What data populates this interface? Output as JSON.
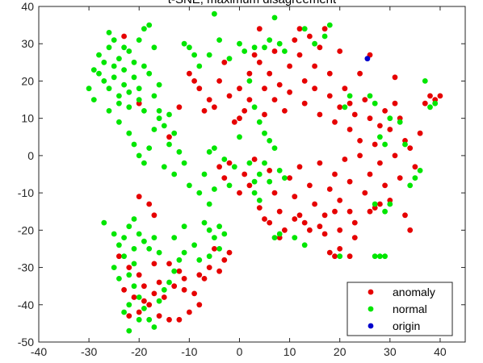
{
  "chart_data": {
    "type": "scatter",
    "title": "t-SNE, maximum disagreement",
    "xlim": [
      -40,
      45
    ],
    "ylim": [
      -50,
      40
    ],
    "x_ticks": [
      -40,
      -30,
      -20,
      -10,
      0,
      10,
      20,
      30,
      40
    ],
    "y_ticks": [
      -50,
      -40,
      -30,
      -20,
      -10,
      0,
      10,
      20,
      30,
      40
    ],
    "grid": false,
    "legend_position": "bottom-right",
    "series": [
      {
        "name": "anomaly",
        "color": "#e60000",
        "points": [
          [
            -23,
            32
          ],
          [
            -20,
            14
          ],
          [
            -14,
            5
          ],
          [
            -12,
            13
          ],
          [
            -10,
            22
          ],
          [
            -9,
            20
          ],
          [
            -8,
            18
          ],
          [
            -7,
            12
          ],
          [
            -6,
            15
          ],
          [
            -5,
            13
          ],
          [
            -4,
            20
          ],
          [
            -3,
            25
          ],
          [
            -2,
            16
          ],
          [
            -1,
            9
          ],
          [
            0,
            10
          ],
          [
            0,
            18
          ],
          [
            1,
            12
          ],
          [
            2,
            22
          ],
          [
            2,
            15
          ],
          [
            3,
            27
          ],
          [
            4,
            34
          ],
          [
            4,
            25
          ],
          [
            5,
            18
          ],
          [
            5,
            11
          ],
          [
            6,
            22
          ],
          [
            7,
            15
          ],
          [
            7,
            28
          ],
          [
            8,
            19
          ],
          [
            9,
            12
          ],
          [
            10,
            24
          ],
          [
            10,
            17
          ],
          [
            11,
            31
          ],
          [
            12,
            34
          ],
          [
            12,
            27
          ],
          [
            13,
            20
          ],
          [
            13,
            14
          ],
          [
            14,
            32
          ],
          [
            15,
            24
          ],
          [
            15,
            18
          ],
          [
            16,
            29
          ],
          [
            16,
            11
          ],
          [
            17,
            34
          ],
          [
            18,
            22
          ],
          [
            18,
            16
          ],
          [
            19,
            9
          ],
          [
            20,
            28
          ],
          [
            20,
            13
          ],
          [
            21,
            18
          ],
          [
            22,
            7
          ],
          [
            22,
            14
          ],
          [
            23,
            11
          ],
          [
            24,
            22
          ],
          [
            24,
            4
          ],
          [
            25,
            15
          ],
          [
            26,
            27
          ],
          [
            26,
            10
          ],
          [
            27,
            3
          ],
          [
            28,
            8
          ],
          [
            29,
            12
          ],
          [
            30,
            7
          ],
          [
            31,
            14
          ],
          [
            31,
            21
          ],
          [
            32,
            10
          ],
          [
            33,
            4
          ],
          [
            34,
            2
          ],
          [
            35,
            -3
          ],
          [
            36,
            6
          ],
          [
            37,
            14
          ],
          [
            38,
            16
          ],
          [
            39,
            15
          ],
          [
            40,
            16
          ],
          [
            -4,
            -3
          ],
          [
            -3,
            -6
          ],
          [
            -2,
            -2
          ],
          [
            0,
            -10
          ],
          [
            1,
            -5
          ],
          [
            2,
            -8
          ],
          [
            3,
            -1
          ],
          [
            4,
            -14
          ],
          [
            5,
            -17
          ],
          [
            6,
            -4
          ],
          [
            7,
            -10
          ],
          [
            8,
            -15
          ],
          [
            9,
            -20
          ],
          [
            10,
            -6
          ],
          [
            11,
            -11
          ],
          [
            12,
            -3
          ],
          [
            13,
            -18
          ],
          [
            14,
            -8
          ],
          [
            15,
            -13
          ],
          [
            16,
            -2
          ],
          [
            17,
            -16
          ],
          [
            18,
            -9
          ],
          [
            19,
            -5
          ],
          [
            20,
            -12
          ],
          [
            20,
            -20
          ],
          [
            21,
            -1
          ],
          [
            22,
            -15
          ],
          [
            22,
            -7
          ],
          [
            23,
            -22
          ],
          [
            24,
            0
          ],
          [
            25,
            -10
          ],
          [
            26,
            -5
          ],
          [
            27,
            -14
          ],
          [
            28,
            -2
          ],
          [
            29,
            -8
          ],
          [
            30,
            -12
          ],
          [
            31,
            0
          ],
          [
            32,
            -6
          ],
          [
            33,
            -16
          ],
          [
            34,
            -20
          ],
          [
            12,
            -16
          ],
          [
            17,
            -21
          ],
          [
            20,
            -25
          ],
          [
            18,
            -26
          ],
          [
            19,
            -27
          ],
          [
            22,
            -27
          ],
          [
            6,
            -18
          ],
          [
            8,
            -22
          ],
          [
            11,
            -17
          ],
          [
            14,
            -20
          ],
          [
            16,
            -19
          ],
          [
            19,
            -15
          ],
          [
            23,
            -18
          ],
          [
            26,
            -15
          ],
          [
            28,
            -13
          ],
          [
            -20,
            -11
          ],
          [
            -18,
            -13
          ],
          [
            -17,
            -16
          ],
          [
            -24,
            -27
          ],
          [
            -22,
            -30
          ],
          [
            -20,
            -32
          ],
          [
            -19,
            -35
          ],
          [
            -17,
            -29
          ],
          [
            -16,
            -34
          ],
          [
            -14,
            -29
          ],
          [
            -12,
            -31
          ],
          [
            -11,
            -33
          ],
          [
            -13,
            -35
          ],
          [
            -15,
            -38
          ],
          [
            -18,
            -40
          ],
          [
            -20,
            -42
          ],
          [
            -22,
            -43
          ],
          [
            -16,
            -43
          ],
          [
            -14,
            -44
          ],
          [
            -12,
            -44
          ],
          [
            -10,
            -42
          ],
          [
            -8,
            -40
          ],
          [
            -9,
            -37
          ],
          [
            -11,
            -36
          ],
          [
            -7,
            -33
          ],
          [
            -6,
            -30
          ],
          [
            -4,
            -31
          ],
          [
            -3,
            -28
          ],
          [
            -2,
            -26
          ],
          [
            -5,
            -25
          ],
          [
            -8,
            -32
          ],
          [
            -17,
            -37
          ],
          [
            -19,
            -39
          ],
          [
            -21,
            -38
          ],
          [
            -23,
            -36
          ]
        ]
      },
      {
        "name": "normal",
        "color": "#00e600",
        "points": [
          [
            -30,
            18
          ],
          [
            -29,
            23
          ],
          [
            -28,
            27
          ],
          [
            -27,
            25
          ],
          [
            -27,
            20
          ],
          [
            -26,
            18
          ],
          [
            -26,
            29
          ],
          [
            -25,
            24
          ],
          [
            -25,
            21
          ],
          [
            -24,
            26
          ],
          [
            -24,
            16
          ],
          [
            -24,
            14
          ],
          [
            -23,
            23
          ],
          [
            -23,
            19
          ],
          [
            -22,
            28
          ],
          [
            -22,
            17
          ],
          [
            -22,
            13
          ],
          [
            -21,
            25
          ],
          [
            -21,
            21
          ],
          [
            -20,
            31
          ],
          [
            -20,
            18
          ],
          [
            -19,
            34
          ],
          [
            -19,
            24
          ],
          [
            -19,
            12
          ],
          [
            -18,
            35
          ],
          [
            -18,
            22
          ],
          [
            -17,
            29
          ],
          [
            -17,
            16
          ],
          [
            -16,
            12
          ],
          [
            -16,
            19
          ],
          [
            -26,
            33
          ],
          [
            -28,
            22
          ],
          [
            -29,
            15
          ],
          [
            -25,
            31
          ],
          [
            -23,
            29
          ],
          [
            -20,
            15
          ],
          [
            -26,
            12
          ],
          [
            -24,
            9
          ],
          [
            -22,
            6
          ],
          [
            -21,
            3
          ],
          [
            -20,
            0
          ],
          [
            -19,
            -2
          ],
          [
            -18,
            2
          ],
          [
            -17,
            7
          ],
          [
            -16,
            10
          ],
          [
            -15,
            8
          ],
          [
            -14,
            11
          ],
          [
            -13,
            6
          ],
          [
            -12,
            1
          ],
          [
            -11,
            -2
          ],
          [
            -14,
            3
          ],
          [
            -15,
            -3
          ],
          [
            -13,
            -5
          ],
          [
            -10,
            -8
          ],
          [
            -8,
            -10
          ],
          [
            -7,
            -5
          ],
          [
            -6,
            -13
          ],
          [
            -5,
            -9
          ],
          [
            -5,
            38
          ],
          [
            -11,
            30
          ],
          [
            -10,
            29
          ],
          [
            -9,
            27
          ],
          [
            -8,
            24
          ],
          [
            -6,
            27
          ],
          [
            -4,
            31
          ],
          [
            -2,
            26
          ],
          [
            0,
            30
          ],
          [
            1,
            28
          ],
          [
            3,
            29
          ],
          [
            5,
            29
          ],
          [
            6,
            31
          ],
          [
            7,
            37
          ],
          [
            8,
            30
          ],
          [
            9,
            28
          ],
          [
            2,
            20
          ],
          [
            3,
            13
          ],
          [
            4,
            9
          ],
          [
            5,
            6
          ],
          [
            6,
            4
          ],
          [
            7,
            2
          ],
          [
            5,
            -2
          ],
          [
            4,
            -5
          ],
          [
            6,
            -7
          ],
          [
            3,
            -7
          ],
          [
            8,
            -4
          ],
          [
            9,
            -6
          ],
          [
            -1,
            -3
          ],
          [
            -2,
            -8
          ],
          [
            2,
            -2
          ],
          [
            0,
            5
          ],
          [
            -3,
            -1
          ],
          [
            -6,
            1
          ],
          [
            -5,
            2
          ],
          [
            13,
            34
          ],
          [
            15,
            30
          ],
          [
            17,
            32
          ],
          [
            18,
            35
          ],
          [
            21,
            13
          ],
          [
            22,
            16
          ],
          [
            26,
            16
          ],
          [
            27,
            14
          ],
          [
            28,
            5
          ],
          [
            29,
            3
          ],
          [
            30,
            10
          ],
          [
            32,
            9
          ],
          [
            33,
            3
          ],
          [
            35,
            -6
          ],
          [
            36,
            -4
          ],
          [
            37,
            20
          ],
          [
            38,
            13
          ],
          [
            39,
            14
          ],
          [
            34,
            -8
          ],
          [
            27,
            -13
          ],
          [
            29,
            -15
          ],
          [
            30,
            -13
          ],
          [
            27,
            -27
          ],
          [
            28,
            -27
          ],
          [
            29,
            -27
          ],
          [
            20,
            -27
          ],
          [
            13,
            -24
          ],
          [
            11,
            -22
          ],
          [
            7,
            -22
          ],
          [
            8,
            -21
          ],
          [
            3,
            -10
          ],
          [
            4,
            -12
          ],
          [
            -27,
            -18
          ],
          [
            -25,
            -21
          ],
          [
            -24,
            -24
          ],
          [
            -23,
            -22
          ],
          [
            -22,
            -19
          ],
          [
            -21,
            -17
          ],
          [
            -20,
            -21
          ],
          [
            -19,
            -23
          ],
          [
            -18,
            -25
          ],
          [
            -17,
            -22
          ],
          [
            -16,
            -26
          ],
          [
            -21,
            -25
          ],
          [
            -23,
            -27
          ],
          [
            -22,
            -32
          ],
          [
            -21,
            -35
          ],
          [
            -20,
            -38
          ],
          [
            -19,
            -41
          ],
          [
            -18,
            -44
          ],
          [
            -17,
            -46
          ],
          [
            -22,
            -40
          ],
          [
            -23,
            -42
          ],
          [
            -20,
            -44
          ],
          [
            -22,
            -47
          ],
          [
            -16,
            -39
          ],
          [
            -15,
            -36
          ],
          [
            -14,
            -34
          ],
          [
            -13,
            -31
          ],
          [
            -12,
            -28
          ],
          [
            -11,
            -26
          ],
          [
            -13,
            -22
          ],
          [
            -11,
            -19
          ],
          [
            -9,
            -24
          ],
          [
            -7,
            -18
          ],
          [
            -6,
            -20
          ],
          [
            -5,
            -22
          ],
          [
            -4,
            -19
          ],
          [
            -3,
            -21
          ],
          [
            -8,
            -28
          ],
          [
            -6,
            -27
          ],
          [
            -4,
            -25
          ],
          [
            -24,
            -33
          ],
          [
            -25,
            -30
          ],
          [
            -21,
            -29
          ]
        ]
      },
      {
        "name": "origin",
        "color": "#0000cc",
        "points": [
          [
            25.5,
            26
          ]
        ]
      }
    ]
  }
}
